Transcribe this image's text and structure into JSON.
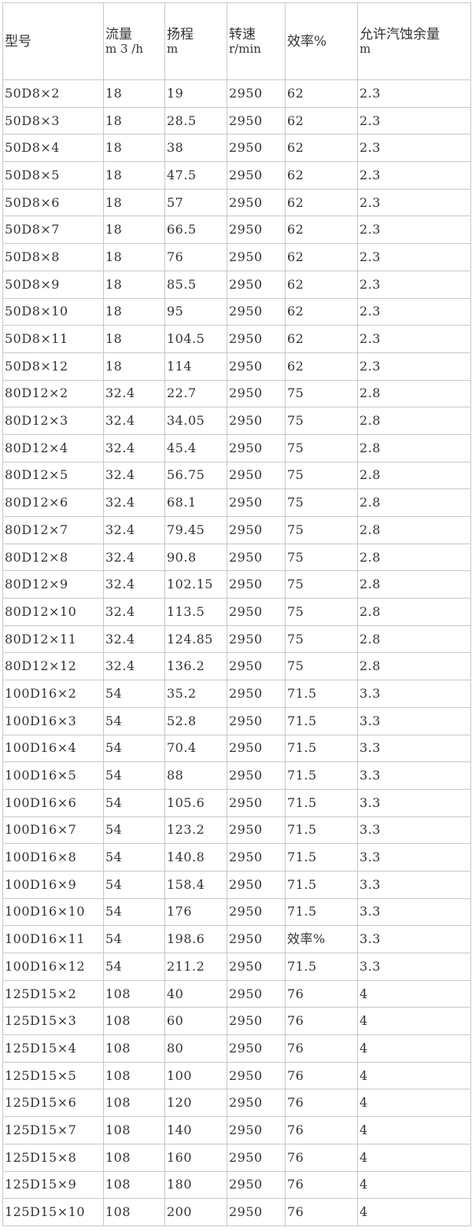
{
  "headers": [
    {
      "title": "型号",
      "unit": ""
    },
    {
      "title": "流量",
      "unit": "m 3 /h"
    },
    {
      "title": "扬程",
      "unit": "m"
    },
    {
      "title": "转速",
      "unit": "r/min"
    },
    {
      "title": "效率%",
      "unit": ""
    },
    {
      "title": "允许汽蚀余量",
      "unit": "m"
    }
  ],
  "rows": [
    [
      "50D8×2",
      "18",
      "19",
      "2950",
      "62",
      "2.3"
    ],
    [
      "50D8×3",
      "18",
      "28.5",
      "2950",
      "62",
      "2.3"
    ],
    [
      "50D8×4",
      "18",
      "38",
      "2950",
      "62",
      "2.3"
    ],
    [
      "50D8×5",
      "18",
      "47.5",
      "2950",
      "62",
      "2.3"
    ],
    [
      "50D8×6",
      "18",
      "57",
      "2950",
      "62",
      "2.3"
    ],
    [
      "50D8×7",
      "18",
      "66.5",
      "2950",
      "62",
      "2.3"
    ],
    [
      "50D8×8",
      "18",
      "76",
      "2950",
      "62",
      "2.3"
    ],
    [
      "50D8×9",
      "18",
      "85.5",
      "2950",
      "62",
      "2.3"
    ],
    [
      "50D8×10",
      "18",
      "95",
      "2950",
      "62",
      "2.3"
    ],
    [
      "50D8×11",
      "18",
      "104.5",
      "2950",
      "62",
      "2.3"
    ],
    [
      "50D8×12",
      "18",
      "114",
      "2950",
      "62",
      "2.3"
    ],
    [
      "80D12×2",
      "32.4",
      "22.7",
      "2950",
      "75",
      "2.8"
    ],
    [
      "80D12×3",
      "32.4",
      "34.05",
      "2950",
      "75",
      "2.8"
    ],
    [
      "80D12×4",
      "32.4",
      "45.4",
      "2950",
      "75",
      "2.8"
    ],
    [
      "80D12×5",
      "32.4",
      "56.75",
      "2950",
      "75",
      "2.8"
    ],
    [
      "80D12×6",
      "32.4",
      "68.1",
      "2950",
      "75",
      "2.8"
    ],
    [
      "80D12×7",
      "32.4",
      "79.45",
      "2950",
      "75",
      "2.8"
    ],
    [
      "80D12×8",
      "32.4",
      "90.8",
      "2950",
      "75",
      "2.8"
    ],
    [
      "80D12×9",
      "32.4",
      "102.15",
      "2950",
      "75",
      "2.8"
    ],
    [
      "80D12×10",
      "32.4",
      "113.5",
      "2950",
      "75",
      "2.8"
    ],
    [
      "80D12×11",
      "32.4",
      "124.85",
      "2950",
      "75",
      "2.8"
    ],
    [
      "80D12×12",
      "32.4",
      "136.2",
      "2950",
      "75",
      "2.8"
    ],
    [
      "100D16×2",
      "54",
      "35.2",
      "2950",
      "71.5",
      "3.3"
    ],
    [
      "100D16×3",
      "54",
      "52.8",
      "2950",
      "71.5",
      "3.3"
    ],
    [
      "100D16×4",
      "54",
      "70.4",
      "2950",
      "71.5",
      "3.3"
    ],
    [
      "100D16×5",
      "54",
      "88",
      "2950",
      "71.5",
      "3.3"
    ],
    [
      "100D16×6",
      "54",
      "105.6",
      "2950",
      "71.5",
      "3.3"
    ],
    [
      "100D16×7",
      "54",
      "123.2",
      "2950",
      "71.5",
      "3.3"
    ],
    [
      "100D16×8",
      "54",
      "140.8",
      "2950",
      "71.5",
      "3.3"
    ],
    [
      "100D16×9",
      "54",
      "158.4",
      "2950",
      "71.5",
      "3.3"
    ],
    [
      "100D16×10",
      "54",
      "176",
      "2950",
      "71.5",
      "3.3"
    ],
    [
      "100D16×11",
      "54",
      "198.6",
      "2950",
      "效率%",
      "3.3"
    ],
    [
      "100D16×12",
      "54",
      "211.2",
      "2950",
      "71.5",
      "3.3"
    ],
    [
      "125D15×2",
      "108",
      "40",
      "2950",
      "76",
      "4"
    ],
    [
      "125D15×3",
      "108",
      "60",
      "2950",
      "76",
      "4"
    ],
    [
      "125D15×4",
      "108",
      "80",
      "2950",
      "76",
      "4"
    ],
    [
      "125D15×5",
      "108",
      "100",
      "2950",
      "76",
      "4"
    ],
    [
      "125D15×6",
      "108",
      "120",
      "2950",
      "76",
      "4"
    ],
    [
      "125D15×7",
      "108",
      "140",
      "2950",
      "76",
      "4"
    ],
    [
      "125D15×8",
      "108",
      "160",
      "2950",
      "76",
      "4"
    ],
    [
      "125D15×9",
      "108",
      "180",
      "2950",
      "76",
      "4"
    ],
    [
      "125D15×10",
      "108",
      "200",
      "2950",
      "76",
      "4"
    ]
  ]
}
